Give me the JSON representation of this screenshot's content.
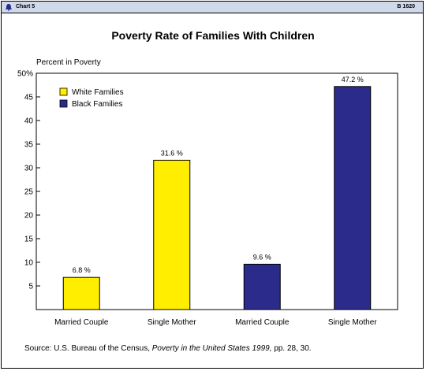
{
  "header": {
    "chart_label": "Chart 5",
    "chart_id": "B 1620"
  },
  "source": {
    "prefix": "Source:",
    "text_before": "U.S. Bureau of the Census,",
    "italic": "Poverty in the United States 1999,",
    "text_after": "pp. 28, 30."
  },
  "colors": {
    "white_families": "#ffee00",
    "black_families": "#2b2b8c",
    "topbar": "#cfd9ea"
  },
  "chart_data": {
    "type": "bar",
    "title": "Poverty Rate of Families With Children",
    "ylabel": "Percent in Poverty",
    "xlabel": "",
    "ylim": [
      0,
      50
    ],
    "y_ticks": [
      "5",
      "10",
      "15",
      "20",
      "25",
      "30",
      "35",
      "40",
      "45",
      "50%"
    ],
    "y_tick_values": [
      5,
      10,
      15,
      20,
      25,
      30,
      35,
      40,
      45,
      50
    ],
    "categories": [
      "Married Couple",
      "Single Mother",
      "Married Couple",
      "Single Mother"
    ],
    "values": [
      6.8,
      31.6,
      9.6,
      47.2
    ],
    "data_labels": [
      "6.8 %",
      "31.6 %",
      "9.6 %",
      "47.2 %"
    ],
    "bar_series": [
      "White Families",
      "White Families",
      "Black Families",
      "Black Families"
    ],
    "series": [
      {
        "name": "White Families",
        "color": "#ffee00"
      },
      {
        "name": "Black Families",
        "color": "#2b2b8c"
      }
    ],
    "legend_position": "top-left",
    "grid": false
  }
}
